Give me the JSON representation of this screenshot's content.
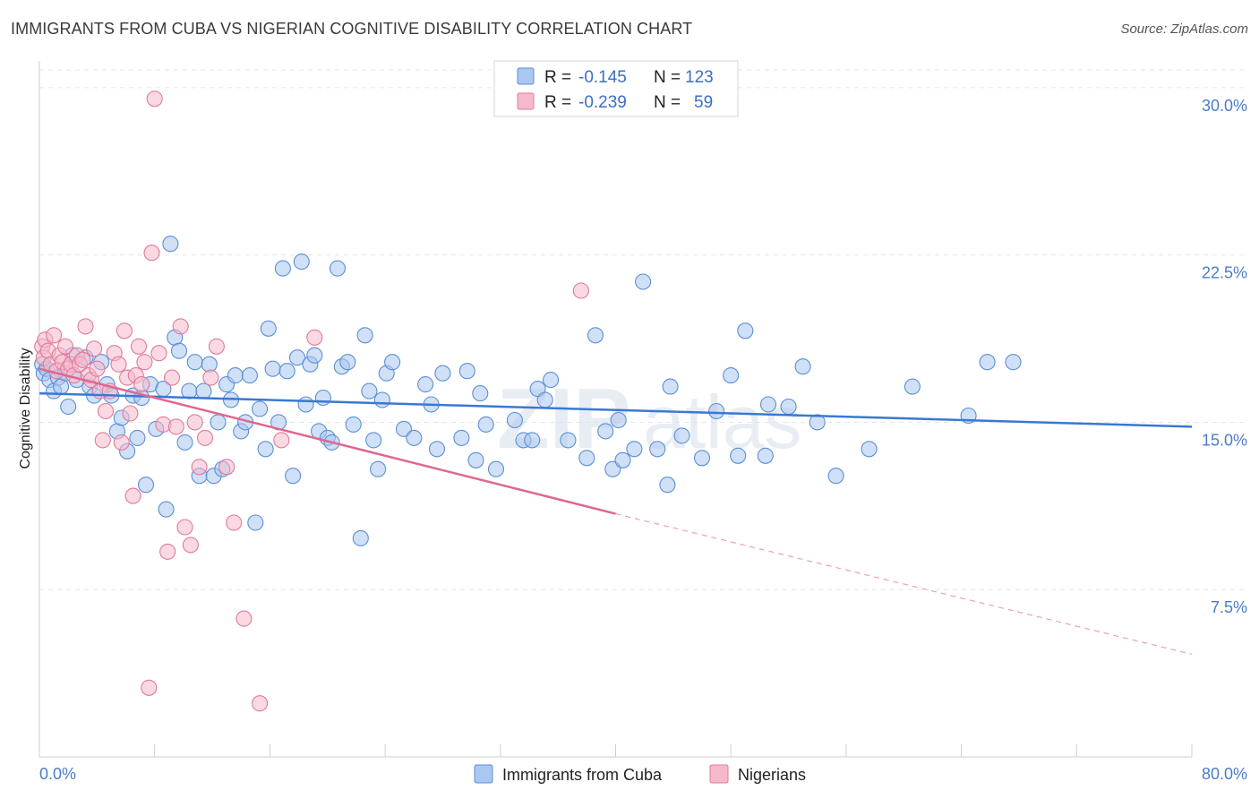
{
  "title": "IMMIGRANTS FROM CUBA VS NIGERIAN COGNITIVE DISABILITY CORRELATION CHART",
  "source": "Source: ZipAtlas.com",
  "watermark": {
    "zip": "ZIP",
    "atlas": "atlas"
  },
  "legend": {
    "rows": [
      {
        "r_label": "R =",
        "r_value": "-0.145",
        "n_label": "N =",
        "n_value": "123",
        "color": "#a9c7ef",
        "edge": "#5b8fd6"
      },
      {
        "r_label": "R =",
        "r_value": "-0.239",
        "n_label": "N =",
        "n_value": "59",
        "color": "#f6b9cc",
        "edge": "#e07a9a"
      }
    ]
  },
  "bottom_legend": [
    {
      "label": "Immigrants from Cuba",
      "color": "#a9c7ef",
      "edge": "#5b8fd6"
    },
    {
      "label": "Nigerians",
      "color": "#f6b9cc",
      "edge": "#e07a9a"
    }
  ],
  "chart_data": {
    "type": "scatter",
    "title": "IMMIGRANTS FROM CUBA VS NIGERIAN COGNITIVE DISABILITY CORRELATION CHART",
    "xlabel": "",
    "ylabel": "Cognitive Disability",
    "xlim": [
      0,
      80
    ],
    "ylim": [
      0,
      31.2
    ],
    "x_tick_labels": {
      "min": "0.0%",
      "max": "80.0%"
    },
    "y_ticks": [
      {
        "value": 7.5,
        "label": "7.5%"
      },
      {
        "value": 15.0,
        "label": "15.0%"
      },
      {
        "value": 22.5,
        "label": "22.5%"
      },
      {
        "value": 30.0,
        "label": "30.0%"
      }
    ],
    "grid": true,
    "series": [
      {
        "name": "Immigrants from Cuba",
        "color": "#5b8fd6",
        "fill": "#a9c7ef",
        "trend": {
          "x0": 0,
          "y0": 16.3,
          "x1": 80,
          "y1": 14.8,
          "dashed_from": null
        },
        "points": [
          [
            0.2,
            17.6
          ],
          [
            0.3,
            17.2
          ],
          [
            0.5,
            17.4
          ],
          [
            0.7,
            16.9
          ],
          [
            1.0,
            16.4
          ],
          [
            1.3,
            17.0
          ],
          [
            1.5,
            16.6
          ],
          [
            1.8,
            17.2
          ],
          [
            2.0,
            15.7
          ],
          [
            2.3,
            18.0
          ],
          [
            2.6,
            16.9
          ],
          [
            3.2,
            17.9
          ],
          [
            3.5,
            16.6
          ],
          [
            3.8,
            16.2
          ],
          [
            4.3,
            17.7
          ],
          [
            4.7,
            16.7
          ],
          [
            5.0,
            16.2
          ],
          [
            5.4,
            14.6
          ],
          [
            5.7,
            15.2
          ],
          [
            6.1,
            13.7
          ],
          [
            6.5,
            16.2
          ],
          [
            6.8,
            14.3
          ],
          [
            7.1,
            16.1
          ],
          [
            7.4,
            12.2
          ],
          [
            7.7,
            16.7
          ],
          [
            8.1,
            14.7
          ],
          [
            8.6,
            16.5
          ],
          [
            8.8,
            11.1
          ],
          [
            9.1,
            23.0
          ],
          [
            9.4,
            18.8
          ],
          [
            9.7,
            18.2
          ],
          [
            10.1,
            14.1
          ],
          [
            10.4,
            16.4
          ],
          [
            10.8,
            17.7
          ],
          [
            11.1,
            12.6
          ],
          [
            11.4,
            16.4
          ],
          [
            11.8,
            17.6
          ],
          [
            12.1,
            12.6
          ],
          [
            12.4,
            15.0
          ],
          [
            12.7,
            12.9
          ],
          [
            13.0,
            16.7
          ],
          [
            13.3,
            16.0
          ],
          [
            13.6,
            17.1
          ],
          [
            14.0,
            14.6
          ],
          [
            14.3,
            15.0
          ],
          [
            14.6,
            17.1
          ],
          [
            15.0,
            10.5
          ],
          [
            15.3,
            15.6
          ],
          [
            15.7,
            13.8
          ],
          [
            15.9,
            19.2
          ],
          [
            16.2,
            17.4
          ],
          [
            16.6,
            15.0
          ],
          [
            16.9,
            21.9
          ],
          [
            17.2,
            17.3
          ],
          [
            17.6,
            12.6
          ],
          [
            17.9,
            17.9
          ],
          [
            18.2,
            22.2
          ],
          [
            18.5,
            15.8
          ],
          [
            18.8,
            17.6
          ],
          [
            19.1,
            18.0
          ],
          [
            19.4,
            14.6
          ],
          [
            19.7,
            16.1
          ],
          [
            20.0,
            14.3
          ],
          [
            20.3,
            14.1
          ],
          [
            20.7,
            21.9
          ],
          [
            21.0,
            17.5
          ],
          [
            21.4,
            17.7
          ],
          [
            21.8,
            14.9
          ],
          [
            22.3,
            9.8
          ],
          [
            22.6,
            18.9
          ],
          [
            22.9,
            16.4
          ],
          [
            23.2,
            14.2
          ],
          [
            23.5,
            12.9
          ],
          [
            23.8,
            16.0
          ],
          [
            24.1,
            17.2
          ],
          [
            24.5,
            17.7
          ],
          [
            25.3,
            14.7
          ],
          [
            26.0,
            14.3
          ],
          [
            26.8,
            16.7
          ],
          [
            27.2,
            15.8
          ],
          [
            27.6,
            13.8
          ],
          [
            28.0,
            17.2
          ],
          [
            29.3,
            14.3
          ],
          [
            29.7,
            17.3
          ],
          [
            30.3,
            13.3
          ],
          [
            30.6,
            16.3
          ],
          [
            31.0,
            14.9
          ],
          [
            31.7,
            12.9
          ],
          [
            33.0,
            15.1
          ],
          [
            33.6,
            14.2
          ],
          [
            34.2,
            14.2
          ],
          [
            34.6,
            16.5
          ],
          [
            35.1,
            16.0
          ],
          [
            35.5,
            16.9
          ],
          [
            36.7,
            14.2
          ],
          [
            38.0,
            13.4
          ],
          [
            38.6,
            18.9
          ],
          [
            39.3,
            14.6
          ],
          [
            39.8,
            12.9
          ],
          [
            40.2,
            15.1
          ],
          [
            40.5,
            13.3
          ],
          [
            41.3,
            13.8
          ],
          [
            41.9,
            21.3
          ],
          [
            42.9,
            13.8
          ],
          [
            43.6,
            12.2
          ],
          [
            43.8,
            16.6
          ],
          [
            44.6,
            14.4
          ],
          [
            46.0,
            13.4
          ],
          [
            47.0,
            15.5
          ],
          [
            48.0,
            17.1
          ],
          [
            48.5,
            13.5
          ],
          [
            49.0,
            19.1
          ],
          [
            50.4,
            13.5
          ],
          [
            50.6,
            15.8
          ],
          [
            52.0,
            15.7
          ],
          [
            53.0,
            17.5
          ],
          [
            54.0,
            15.0
          ],
          [
            55.3,
            12.6
          ],
          [
            57.6,
            13.8
          ],
          [
            60.6,
            16.6
          ],
          [
            64.5,
            15.3
          ],
          [
            65.8,
            17.7
          ],
          [
            67.6,
            17.7
          ]
        ]
      },
      {
        "name": "Nigerians",
        "color": "#e07a9a",
        "fill": "#f6b9cc",
        "trend": {
          "x0": 0,
          "y0": 17.4,
          "x1": 40,
          "y1": 10.9,
          "dashed_to": 80,
          "dashed_y": 4.6
        },
        "points": [
          [
            0.2,
            18.4
          ],
          [
            0.3,
            17.9
          ],
          [
            0.4,
            18.7
          ],
          [
            0.6,
            18.2
          ],
          [
            0.8,
            17.6
          ],
          [
            1.0,
            18.9
          ],
          [
            1.2,
            17.3
          ],
          [
            1.4,
            18.0
          ],
          [
            1.6,
            17.7
          ],
          [
            1.8,
            18.4
          ],
          [
            2.0,
            17.4
          ],
          [
            2.2,
            17.6
          ],
          [
            2.4,
            17.1
          ],
          [
            2.6,
            18.0
          ],
          [
            2.8,
            17.6
          ],
          [
            3.0,
            17.8
          ],
          [
            3.2,
            19.3
          ],
          [
            3.4,
            17.1
          ],
          [
            3.6,
            16.9
          ],
          [
            3.8,
            18.3
          ],
          [
            4.0,
            17.4
          ],
          [
            4.2,
            16.4
          ],
          [
            4.4,
            14.2
          ],
          [
            4.6,
            15.5
          ],
          [
            4.9,
            16.4
          ],
          [
            5.2,
            18.1
          ],
          [
            5.5,
            17.6
          ],
          [
            5.7,
            14.1
          ],
          [
            5.9,
            19.1
          ],
          [
            6.1,
            17.0
          ],
          [
            6.3,
            15.4
          ],
          [
            6.5,
            11.7
          ],
          [
            6.7,
            17.1
          ],
          [
            6.9,
            18.4
          ],
          [
            7.1,
            16.7
          ],
          [
            7.3,
            17.7
          ],
          [
            7.6,
            3.1
          ],
          [
            7.8,
            22.6
          ],
          [
            8.0,
            29.5
          ],
          [
            8.3,
            18.1
          ],
          [
            8.6,
            14.9
          ],
          [
            8.9,
            9.2
          ],
          [
            9.2,
            17.0
          ],
          [
            9.5,
            14.8
          ],
          [
            9.8,
            19.3
          ],
          [
            10.1,
            10.3
          ],
          [
            10.5,
            9.5
          ],
          [
            10.8,
            15.0
          ],
          [
            11.1,
            13.0
          ],
          [
            11.5,
            14.3
          ],
          [
            11.9,
            17.0
          ],
          [
            12.3,
            18.4
          ],
          [
            13.0,
            13.0
          ],
          [
            13.5,
            10.5
          ],
          [
            14.2,
            6.2
          ],
          [
            15.3,
            2.4
          ],
          [
            16.8,
            14.2
          ],
          [
            19.1,
            18.8
          ],
          [
            37.6,
            20.9
          ]
        ]
      }
    ]
  }
}
